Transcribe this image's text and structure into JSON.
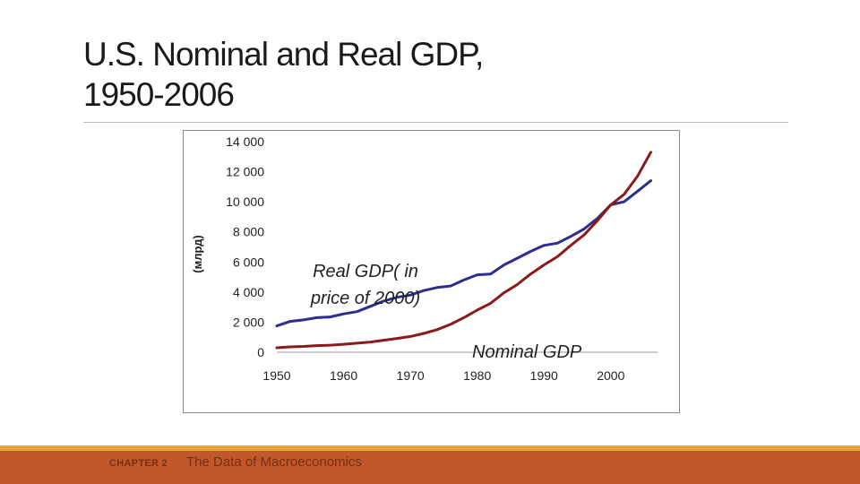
{
  "slide": {
    "title_line1": "U.S. Nominal and Real GDP,",
    "title_line2": "1950-2006"
  },
  "footer": {
    "chapter": "CHAPTER 2",
    "title": "The Data of Macroeconomics"
  },
  "colors": {
    "real_gdp": "#2e2e8f",
    "nominal_gdp": "#8b1a1a",
    "footer_band": "#c0582b",
    "footer_line": "#e8a33c"
  },
  "chart_data": {
    "type": "line",
    "title": "",
    "xlabel": "",
    "ylabel": "(млрд)",
    "xlim": [
      1950,
      2007
    ],
    "ylim": [
      0,
      14000
    ],
    "x_ticks": [
      "1950",
      "1960",
      "1970",
      "1980",
      "1990",
      "2000"
    ],
    "y_ticks": [
      "0",
      "2 000",
      "4 000",
      "6 000",
      "8 000",
      "10 000",
      "12 000",
      "14 000"
    ],
    "grid": false,
    "annotations": [
      "Real GDP( in price of 2000)",
      "Nominal GDP"
    ],
    "series": [
      {
        "name": "Real GDP( in price of 2000)",
        "color": "#2e2e8f",
        "x": [
          1950,
          1952,
          1954,
          1956,
          1958,
          1960,
          1962,
          1964,
          1966,
          1968,
          1970,
          1972,
          1974,
          1976,
          1978,
          1980,
          1982,
          1984,
          1986,
          1988,
          1990,
          1992,
          1994,
          1996,
          1998,
          2000,
          2002,
          2004,
          2006
        ],
        "values": [
          1750,
          2050,
          2150,
          2300,
          2350,
          2550,
          2700,
          3050,
          3400,
          3650,
          3800,
          4100,
          4300,
          4400,
          4800,
          5150,
          5200,
          5800,
          6250,
          6700,
          7100,
          7250,
          7700,
          8200,
          8900,
          9800,
          10000,
          10700,
          11400
        ]
      },
      {
        "name": "Nominal GDP",
        "color": "#8b1a1a",
        "x": [
          1950,
          1952,
          1954,
          1956,
          1958,
          1960,
          1962,
          1964,
          1966,
          1968,
          1970,
          1972,
          1974,
          1976,
          1978,
          1980,
          1982,
          1984,
          1986,
          1988,
          1990,
          1992,
          1994,
          1996,
          1998,
          2000,
          2002,
          2004,
          2006
        ],
        "values": [
          300,
          360,
          390,
          440,
          470,
          530,
          600,
          680,
          800,
          920,
          1050,
          1250,
          1500,
          1850,
          2300,
          2800,
          3250,
          3950,
          4500,
          5200,
          5800,
          6350,
          7100,
          7800,
          8750,
          9800,
          10500,
          11700,
          13300
        ]
      }
    ]
  }
}
